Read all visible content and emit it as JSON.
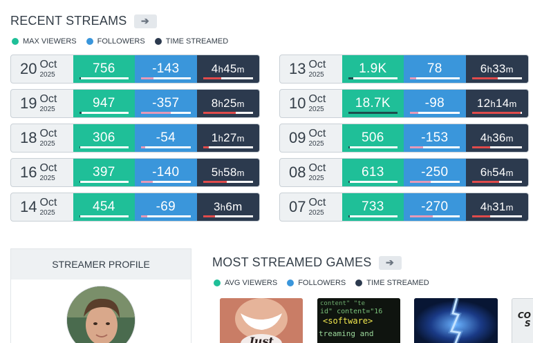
{
  "recent_streams": {
    "title": "RECENT STREAMS",
    "arrow_icon": "arrow-right-icon",
    "legend": [
      {
        "label": "MAX VIEWERS",
        "color": "#1fbf98"
      },
      {
        "label": "FOLLOWERS",
        "color": "#3a96db"
      },
      {
        "label": "TIME STREAMED",
        "color": "#2c3a4e"
      }
    ],
    "left": [
      {
        "day": "20",
        "month": "Oct",
        "year": "2025",
        "viewers": "756",
        "followers": "-143",
        "time_h": "4",
        "time_m": "45",
        "viewers_frac": 0.04,
        "followers_frac": 0.25,
        "time_frac": 0.36
      },
      {
        "day": "19",
        "month": "Oct",
        "year": "2025",
        "viewers": "947",
        "followers": "-357",
        "time_h": "8",
        "time_m": "25",
        "viewers_frac": 0.05,
        "followers_frac": 0.6,
        "time_frac": 0.66
      },
      {
        "day": "18",
        "month": "Oct",
        "year": "2025",
        "viewers": "306",
        "followers": "-54",
        "time_h": "1",
        "time_m": "27",
        "viewers_frac": 0.02,
        "followers_frac": 0.09,
        "time_frac": 0.11
      },
      {
        "day": "16",
        "month": "Oct",
        "year": "2025",
        "viewers": "397",
        "followers": "-140",
        "time_h": "5",
        "time_m": "58",
        "viewers_frac": 0.02,
        "followers_frac": 0.24,
        "time_frac": 0.47
      },
      {
        "day": "14",
        "month": "Oct",
        "year": "2025",
        "viewers": "454",
        "followers": "-69",
        "time_h": "3",
        "time_m": "6m",
        "viewers_frac": 0.02,
        "followers_frac": 0.12,
        "time_frac": 0.24
      }
    ],
    "right": [
      {
        "day": "13",
        "month": "Oct",
        "year": "2025",
        "viewers": "1.9K",
        "followers": "78",
        "time_h": "6",
        "time_m": "33",
        "viewers_frac": 0.1,
        "followers_frac": 0.13,
        "time_frac": 0.52
      },
      {
        "day": "10",
        "month": "Oct",
        "year": "2025",
        "viewers": "18.7K",
        "followers": "-98",
        "time_h": "12",
        "time_m": "14",
        "viewers_frac": 1.0,
        "followers_frac": 0.17,
        "time_frac": 0.97
      },
      {
        "day": "09",
        "month": "Oct",
        "year": "2025",
        "viewers": "506",
        "followers": "-153",
        "time_h": "4",
        "time_m": "36",
        "viewers_frac": 0.03,
        "followers_frac": 0.26,
        "time_frac": 0.37
      },
      {
        "day": "08",
        "month": "Oct",
        "year": "2025",
        "viewers": "613",
        "followers": "-250",
        "time_h": "6",
        "time_m": "54",
        "viewers_frac": 0.03,
        "followers_frac": 0.42,
        "time_frac": 0.55
      },
      {
        "day": "07",
        "month": "Oct",
        "year": "2025",
        "viewers": "733",
        "followers": "-270",
        "time_h": "4",
        "time_m": "31",
        "viewers_frac": 0.04,
        "followers_frac": 0.46,
        "time_frac": 0.36
      }
    ]
  },
  "profile": {
    "title": "STREAMER PROFILE"
  },
  "games": {
    "title": "MOST STREAMED GAMES",
    "arrow_icon": "arrow-right-icon",
    "legend": [
      {
        "label": "AVG VIEWERS",
        "color": "#1fbf98"
      },
      {
        "label": "FOLLOWERS",
        "color": "#3a96db"
      },
      {
        "label": "TIME STREAMED",
        "color": "#2c3a4e"
      }
    ],
    "thumbs": [
      {
        "name": "just-chatting-thumb",
        "text": "Just"
      },
      {
        "name": "software-thumb",
        "line1": "content\" \"te",
        "line2": "id\" content=\"16",
        "line3": "<software>",
        "line4": "treaming and"
      },
      {
        "name": "lightning-thumb"
      },
      {
        "name": "other-game-thumb",
        "line1": "CO",
        "line2": "S"
      }
    ]
  }
}
